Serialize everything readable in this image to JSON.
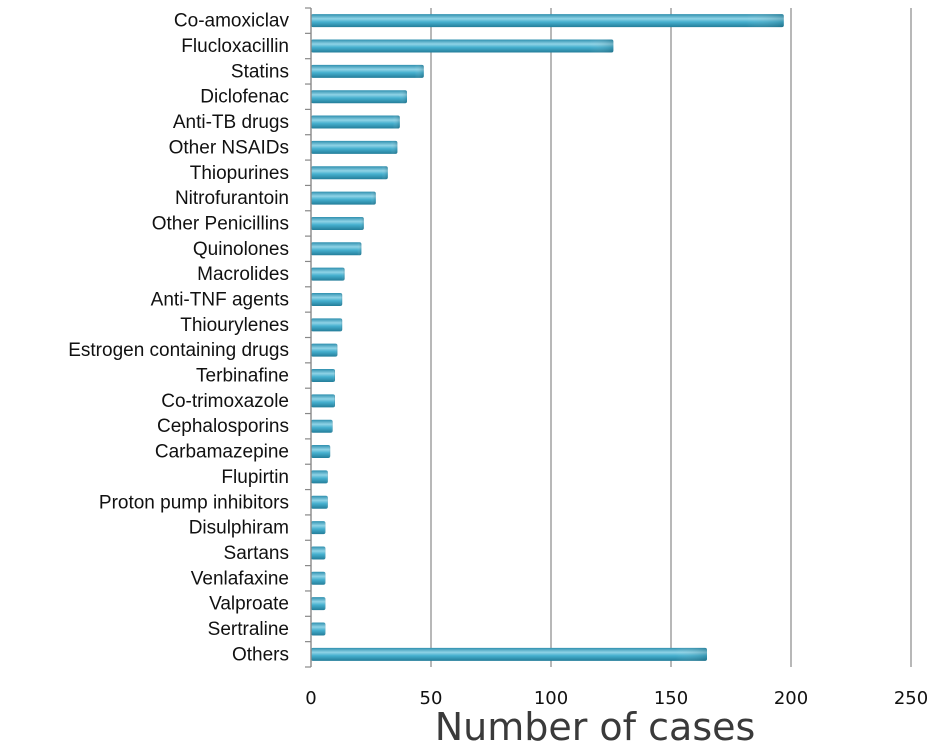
{
  "chart_data": {
    "type": "bar",
    "orientation": "horizontal",
    "categories": [
      "Co-amoxiclav",
      "Flucloxacillin",
      "Statins",
      "Diclofenac",
      "Anti-TB drugs",
      "Other NSAIDs",
      "Thiopurines",
      "Nitrofurantoin",
      "Other Penicillins",
      "Quinolones",
      "Macrolides",
      "Anti-TNF agents",
      "Thiourylenes",
      "Estrogen containing drugs",
      "Terbinafine",
      "Co-trimoxazole",
      "Cephalosporins",
      "Carbamazepine",
      "Flupirtin",
      "Proton pump inhibitors",
      "Disulphiram",
      "Sartans",
      "Venlafaxine",
      "Valproate",
      "Sertraline",
      "Others"
    ],
    "values": [
      197,
      126,
      47,
      40,
      37,
      36,
      32,
      27,
      22,
      21,
      14,
      13,
      13,
      11,
      10,
      10,
      9,
      8,
      7,
      7,
      6,
      6,
      6,
      6,
      6,
      165
    ],
    "xlabel": "Number of cases",
    "ylabel": "",
    "title": "",
    "xlim": [
      0,
      250
    ],
    "xticks": [
      0,
      50,
      100,
      150,
      200,
      250
    ],
    "grid": "vertical",
    "bar_color": "#3aa3c2",
    "bar_highlight": "#8fd3e6",
    "grid_color": "#9a9a9a",
    "axis_color": "#888888"
  }
}
